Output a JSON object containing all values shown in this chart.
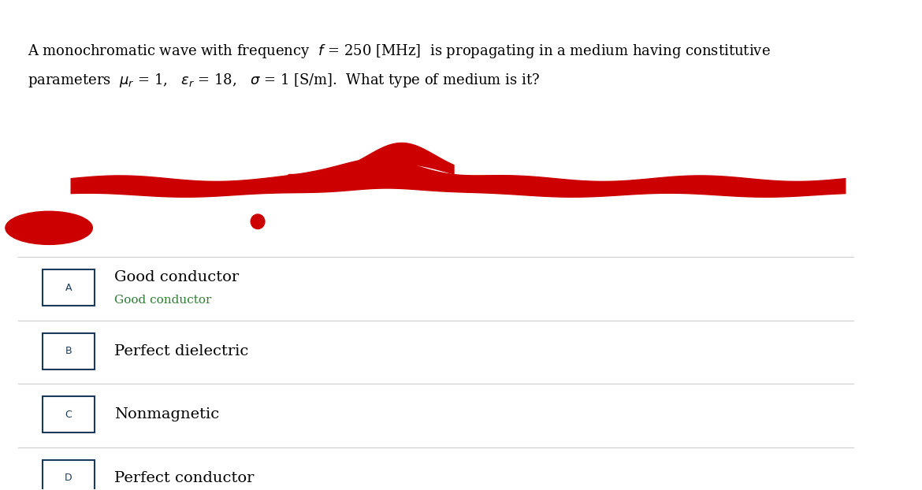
{
  "title_line1": "A monochromatic wave with frequency  $f$ = 250 [MHz]  is propagating in a medium having constitutive",
  "title_line2": "parameters  $\\mu_r$ = 1,   $\\varepsilon_r$ = 18,   $\\sigma$ = 1 [S/m].  What type of medium is it?",
  "bg_color": "#ffffff",
  "red_color": "#cc0000",
  "options": [
    {
      "label": "A",
      "main_text": "Good conductor",
      "sub_text": "Good conductor"
    },
    {
      "label": "B",
      "main_text": "Perfect dielectric",
      "sub_text": null
    },
    {
      "label": "C",
      "main_text": "Nonmagnetic",
      "sub_text": null
    },
    {
      "label": "D",
      "main_text": "Perfect conductor",
      "sub_text": null
    }
  ],
  "option_box_color": "#1a3a5c",
  "label_color": "#1a3a5c",
  "sub_text_color": "#2e7d32",
  "divider_color": "#cccccc",
  "main_text_fontsize": 14,
  "sub_text_fontsize": 11,
  "label_fontsize": 9
}
